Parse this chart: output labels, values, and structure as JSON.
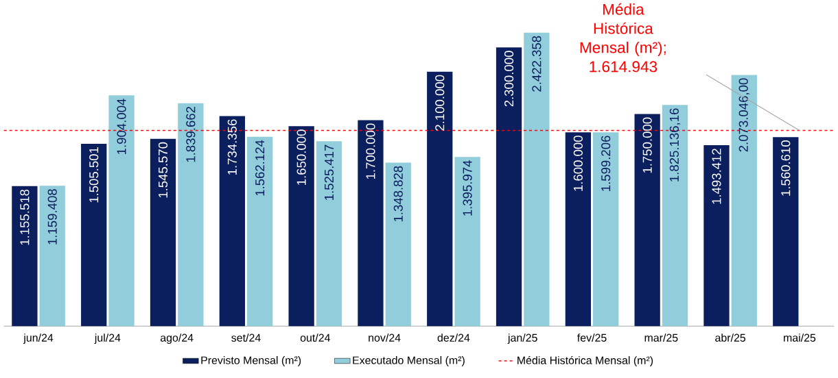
{
  "chart_data": {
    "type": "bar",
    "categories": [
      "jun/24",
      "jul/24",
      "ago/24",
      "set/24",
      "out/24",
      "nov/24",
      "dez/24",
      "jan/25",
      "fev/25",
      "mar/25",
      "abr/25",
      "mai/25"
    ],
    "series": [
      {
        "name": "Previsto Mensal (m²)",
        "color": "#0b1f5e",
        "values": [
          1155518,
          1505501,
          1545570,
          1734356,
          1650000,
          1700000,
          2100000,
          2300000,
          1600000,
          1750000,
          1493412,
          1560610
        ],
        "value_labels": [
          "1.155.518",
          "1.505.501",
          "1.545.570",
          "1.734.356",
          "1.650.000",
          "1.700.000",
          "2.100.000",
          "2.300.000",
          "1.600.000",
          "1.750.000",
          "1.493.412",
          "1.560.610"
        ]
      },
      {
        "name": "Executado Mensal (m²)",
        "color": "#92cddc",
        "values": [
          1159408,
          1904004,
          1839662,
          1562124,
          1525417,
          1348828,
          1395974,
          2422358,
          1599206,
          1825136.16,
          2073046.0,
          null
        ],
        "value_labels": [
          "1.159.408",
          "1.904.004",
          "1.839.662",
          "1.562.124",
          "1.525.417",
          "1.348.828",
          "1.395.974",
          "2.422.358",
          "1.599.206",
          "1.825.136,16",
          "2.073.046,00",
          null
        ]
      }
    ],
    "ref_lines": [
      {
        "axis": "y",
        "value": 1614943,
        "label": "Média Histórica Mensal (m²)",
        "color": "#ff0000",
        "line_style": "dashed"
      }
    ],
    "annotations": [
      "Média Histórica Mensal (m²); 1.614.943"
    ],
    "legend": "bottom"
  }
}
